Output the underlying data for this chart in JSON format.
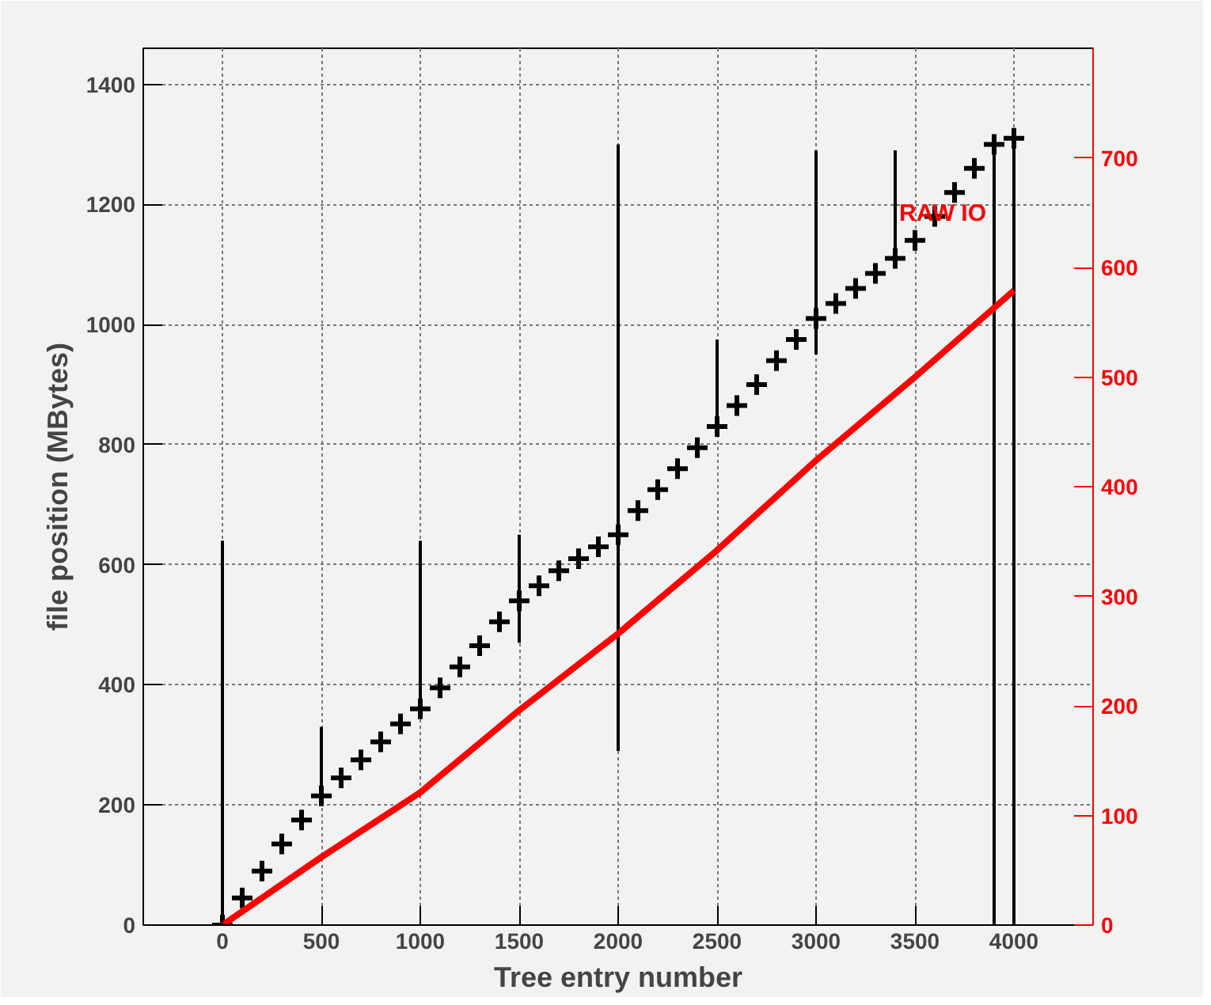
{
  "chart_data": {
    "type": "scatter",
    "xlabel": "Tree entry number",
    "ylabel": "file position (MBytes)",
    "xlim": [
      -400,
      4400
    ],
    "ylim": [
      0,
      1460
    ],
    "y2lim": [
      0,
      800
    ],
    "xticks": [
      0,
      500,
      1000,
      1500,
      2000,
      2500,
      3000,
      3500,
      4000
    ],
    "yticks": [
      0,
      200,
      400,
      600,
      800,
      1000,
      1200,
      1400
    ],
    "y2ticks": [
      0,
      100,
      200,
      300,
      400,
      500,
      600,
      700
    ],
    "grid": true,
    "series": [
      {
        "color": "#000000",
        "marker": "cross",
        "x": [
          0,
          100,
          200,
          300,
          400,
          500,
          600,
          700,
          800,
          900,
          1000,
          1100,
          1200,
          1300,
          1400,
          1500,
          1600,
          1700,
          1800,
          1900,
          2000,
          2100,
          2200,
          2300,
          2400,
          2500,
          2600,
          2700,
          2800,
          2900,
          3000,
          3100,
          3200,
          3300,
          3400,
          3500,
          3600,
          3700,
          3800,
          3900,
          4000
        ],
        "values": [
          0,
          45,
          90,
          135,
          175,
          215,
          245,
          275,
          305,
          335,
          360,
          395,
          430,
          465,
          505,
          540,
          565,
          590,
          610,
          630,
          650,
          690,
          725,
          760,
          795,
          830,
          865,
          900,
          940,
          975,
          1010,
          1035,
          1060,
          1085,
          1110,
          1140,
          1180,
          1220,
          1260,
          1300,
          1310
        ],
        "errors": [
          [
            0,
            640
          ],
          null,
          null,
          null,
          null,
          [
            215,
            330
          ],
          null,
          null,
          null,
          null,
          [
            360,
            640
          ],
          null,
          null,
          null,
          null,
          [
            470,
            650
          ],
          null,
          null,
          null,
          null,
          [
            290,
            1300
          ],
          null,
          null,
          null,
          null,
          [
            830,
            975
          ],
          null,
          null,
          null,
          null,
          [
            950,
            1290
          ],
          null,
          null,
          null,
          [
            1110,
            1290
          ],
          null,
          null,
          null,
          null,
          [
            0,
            1300
          ],
          [
            0,
            1310
          ]
        ]
      },
      {
        "type": "line",
        "name": "RAW IO",
        "color": "#ff0000",
        "axis": "y2",
        "line_style": "solid",
        "x": [
          0,
          500,
          1000,
          1500,
          2000,
          2500,
          3000,
          3500,
          4000
        ],
        "values": [
          0,
          62,
          121,
          196,
          266,
          342,
          424,
          500,
          579
        ]
      }
    ]
  }
}
